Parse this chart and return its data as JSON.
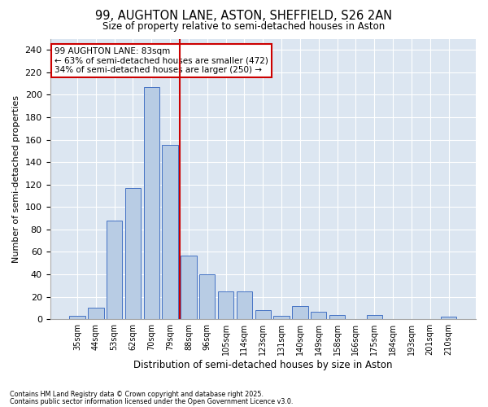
{
  "title_line1": "99, AUGHTON LANE, ASTON, SHEFFIELD, S26 2AN",
  "title_line2": "Size of property relative to semi-detached houses in Aston",
  "xlabel": "Distribution of semi-detached houses by size in Aston",
  "ylabel": "Number of semi-detached properties",
  "categories": [
    "35sqm",
    "44sqm",
    "53sqm",
    "62sqm",
    "70sqm",
    "79sqm",
    "88sqm",
    "96sqm",
    "105sqm",
    "114sqm",
    "123sqm",
    "131sqm",
    "140sqm",
    "149sqm",
    "158sqm",
    "166sqm",
    "175sqm",
    "184sqm",
    "193sqm",
    "201sqm",
    "210sqm"
  ],
  "values": [
    3,
    10,
    88,
    117,
    207,
    155,
    57,
    40,
    25,
    25,
    8,
    3,
    12,
    7,
    4,
    0,
    4,
    0,
    0,
    0,
    2
  ],
  "bar_color": "#b8cce4",
  "bar_edge_color": "#4472c4",
  "bg_color": "#dce6f1",
  "grid_color": "#ffffff",
  "ref_line_x": 5.5,
  "ref_line_color": "#cc0000",
  "annotation_text": "99 AUGHTON LANE: 83sqm\n← 63% of semi-detached houses are smaller (472)\n34% of semi-detached houses are larger (250) →",
  "annotation_box_color": "#cc0000",
  "footer_line1": "Contains HM Land Registry data © Crown copyright and database right 2025.",
  "footer_line2": "Contains public sector information licensed under the Open Government Licence v3.0.",
  "ylim": [
    0,
    250
  ],
  "yticks": [
    0,
    20,
    40,
    60,
    80,
    100,
    120,
    140,
    160,
    180,
    200,
    220,
    240
  ]
}
